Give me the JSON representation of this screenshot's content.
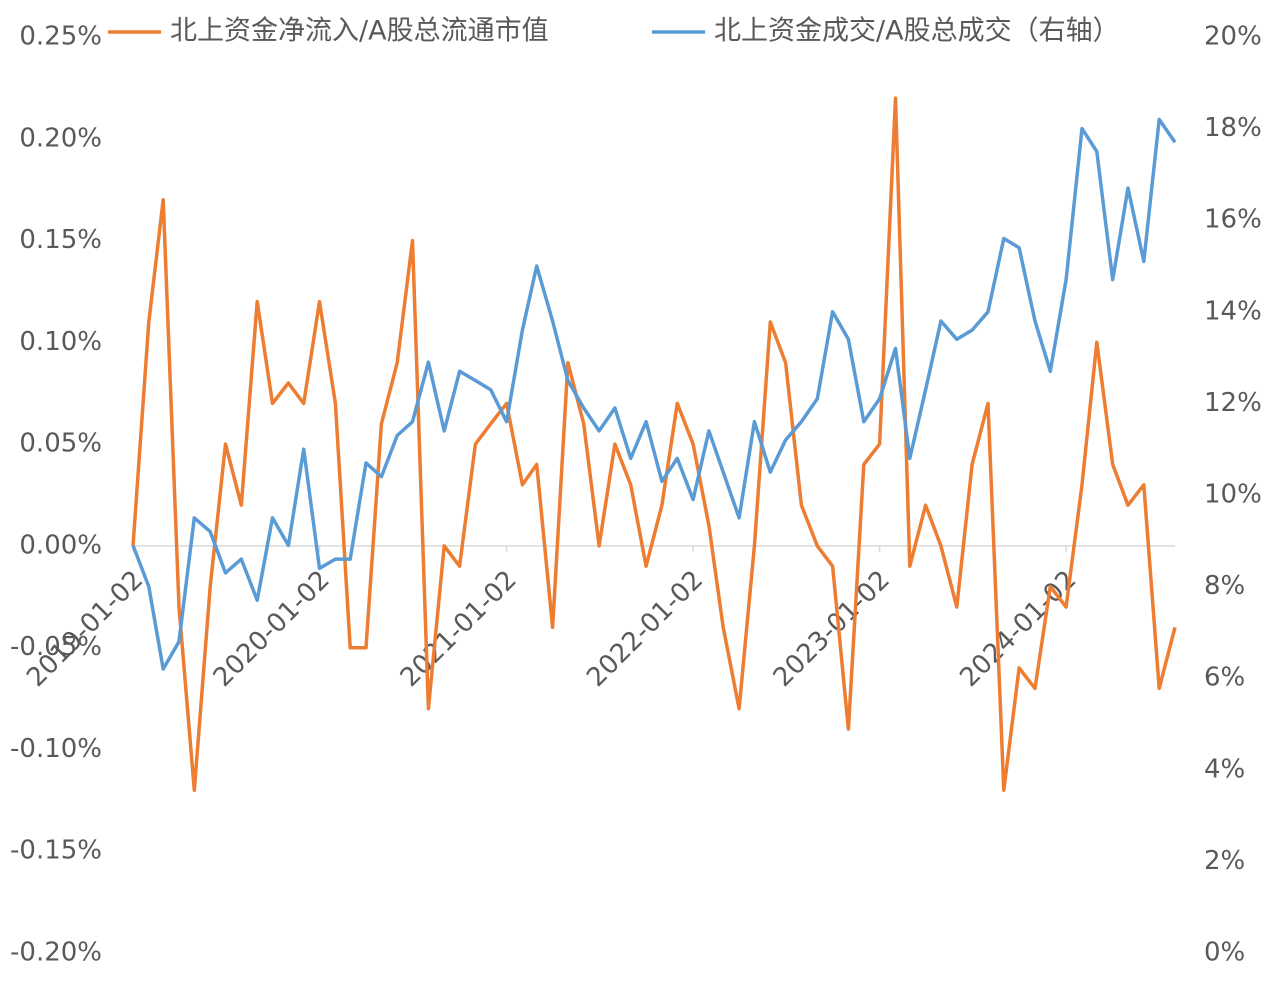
{
  "chart_data": {
    "type": "line",
    "x": [
      "2019-01-02",
      "2019-02-02",
      "2019-03-02",
      "2019-04-02",
      "2019-05-02",
      "2019-06-02",
      "2019-07-02",
      "2019-08-02",
      "2019-09-02",
      "2019-10-02",
      "2019-11-02",
      "2019-12-02",
      "2020-01-02",
      "2020-02-02",
      "2020-03-02",
      "2020-04-02",
      "2020-05-02",
      "2020-06-02",
      "2020-07-02",
      "2020-08-02",
      "2020-09-02",
      "2020-10-02",
      "2020-11-02",
      "2020-12-02",
      "2021-01-02",
      "2021-02-02",
      "2021-03-02",
      "2021-04-02",
      "2021-05-02",
      "2021-06-02",
      "2021-07-02",
      "2021-08-02",
      "2021-09-02",
      "2021-10-02",
      "2021-11-02",
      "2021-12-02",
      "2022-01-02",
      "2022-02-02",
      "2022-03-02",
      "2022-04-02",
      "2022-05-02",
      "2022-06-02",
      "2022-07-02",
      "2022-08-02",
      "2022-09-02",
      "2022-10-02",
      "2022-11-02",
      "2022-12-02",
      "2023-01-02",
      "2023-02-02",
      "2023-03-02",
      "2023-04-02",
      "2023-05-02",
      "2023-06-02",
      "2023-07-02",
      "2023-08-02",
      "2023-09-02",
      "2023-10-02",
      "2023-11-02",
      "2023-12-02",
      "2024-01-02",
      "2024-02-02",
      "2024-03-02",
      "2024-04-02",
      "2024-05-02",
      "2024-06-02",
      "2024-07-02",
      "2024-08-02"
    ],
    "series": [
      {
        "name": "北上资金净流入/A股总流通市值",
        "color": "#ED7D31",
        "axis": "y",
        "values": [
          0.0,
          0.11,
          0.17,
          -0.03,
          -0.12,
          -0.02,
          0.05,
          0.02,
          0.12,
          0.07,
          0.08,
          0.07,
          0.12,
          0.07,
          -0.05,
          -0.05,
          0.06,
          0.09,
          0.15,
          -0.08,
          0.0,
          -0.01,
          0.05,
          0.06,
          0.07,
          0.03,
          0.04,
          -0.04,
          0.09,
          0.06,
          0.0,
          0.05,
          0.03,
          -0.01,
          0.02,
          0.07,
          0.05,
          0.01,
          -0.04,
          -0.08,
          0.0,
          0.11,
          0.09,
          0.02,
          0.0,
          -0.01,
          -0.09,
          0.04,
          0.05,
          0.22,
          -0.01,
          0.02,
          0.0,
          -0.03,
          0.04,
          0.07,
          -0.12,
          -0.06,
          -0.07,
          -0.02,
          -0.03,
          0.03,
          0.1,
          0.04,
          0.02,
          0.03,
          -0.07,
          -0.04
        ]
      },
      {
        "name": "北上资金成交/A股总成交（右轴）",
        "color": "#5B9BD5",
        "axis": "y2",
        "values": [
          8.9,
          8.0,
          6.2,
          6.8,
          9.5,
          9.2,
          8.3,
          8.6,
          7.7,
          9.5,
          8.9,
          11.0,
          8.4,
          8.6,
          8.6,
          10.7,
          10.4,
          11.3,
          11.6,
          12.9,
          11.4,
          12.7,
          12.5,
          12.3,
          11.6,
          13.6,
          15.0,
          13.8,
          12.5,
          11.9,
          11.4,
          11.9,
          10.8,
          11.6,
          10.3,
          10.8,
          9.9,
          11.4,
          10.5,
          9.5,
          11.6,
          10.5,
          11.2,
          11.6,
          12.1,
          14.0,
          13.4,
          11.6,
          12.1,
          13.2,
          10.8,
          12.3,
          13.8,
          13.4,
          13.6,
          14.0,
          15.6,
          15.4,
          13.8,
          12.7,
          14.7,
          18.0,
          17.5,
          14.7,
          16.7,
          15.1,
          18.2,
          17.7
        ]
      }
    ],
    "xlim": [
      "2019-01-02",
      "2024-08-02"
    ],
    "xticks": [
      "2019-01-02",
      "2020-01-02",
      "2021-01-02",
      "2022-01-02",
      "2023-01-02",
      "2024-01-02"
    ],
    "ylim": [
      -0.2,
      0.25
    ],
    "yticks": [
      {
        "value": -0.2,
        "label": "-0.20%"
      },
      {
        "value": -0.15,
        "label": "-0.15%"
      },
      {
        "value": -0.1,
        "label": "-0.10%"
      },
      {
        "value": -0.05,
        "label": "-0.05%"
      },
      {
        "value": 0,
        "label": "0.00%"
      },
      {
        "value": 0.05,
        "label": "0.05%"
      },
      {
        "value": 0.1,
        "label": "0.10%"
      },
      {
        "value": 0.15,
        "label": "0.15%"
      },
      {
        "value": 0.2,
        "label": "0.20%"
      },
      {
        "value": 0.25,
        "label": "0.25%"
      }
    ],
    "y2lim": [
      0,
      20
    ],
    "y2ticks": [
      {
        "value": 0,
        "label": "0%"
      },
      {
        "value": 2,
        "label": "2%"
      },
      {
        "value": 4,
        "label": "4%"
      },
      {
        "value": 6,
        "label": "6%"
      },
      {
        "value": 8,
        "label": "8%"
      },
      {
        "value": 10,
        "label": "10%"
      },
      {
        "value": 12,
        "label": "12%"
      },
      {
        "value": 14,
        "label": "14%"
      },
      {
        "value": 16,
        "label": "16%"
      },
      {
        "value": 18,
        "label": "18%"
      },
      {
        "value": 20,
        "label": "20%"
      }
    ],
    "grid": false
  }
}
